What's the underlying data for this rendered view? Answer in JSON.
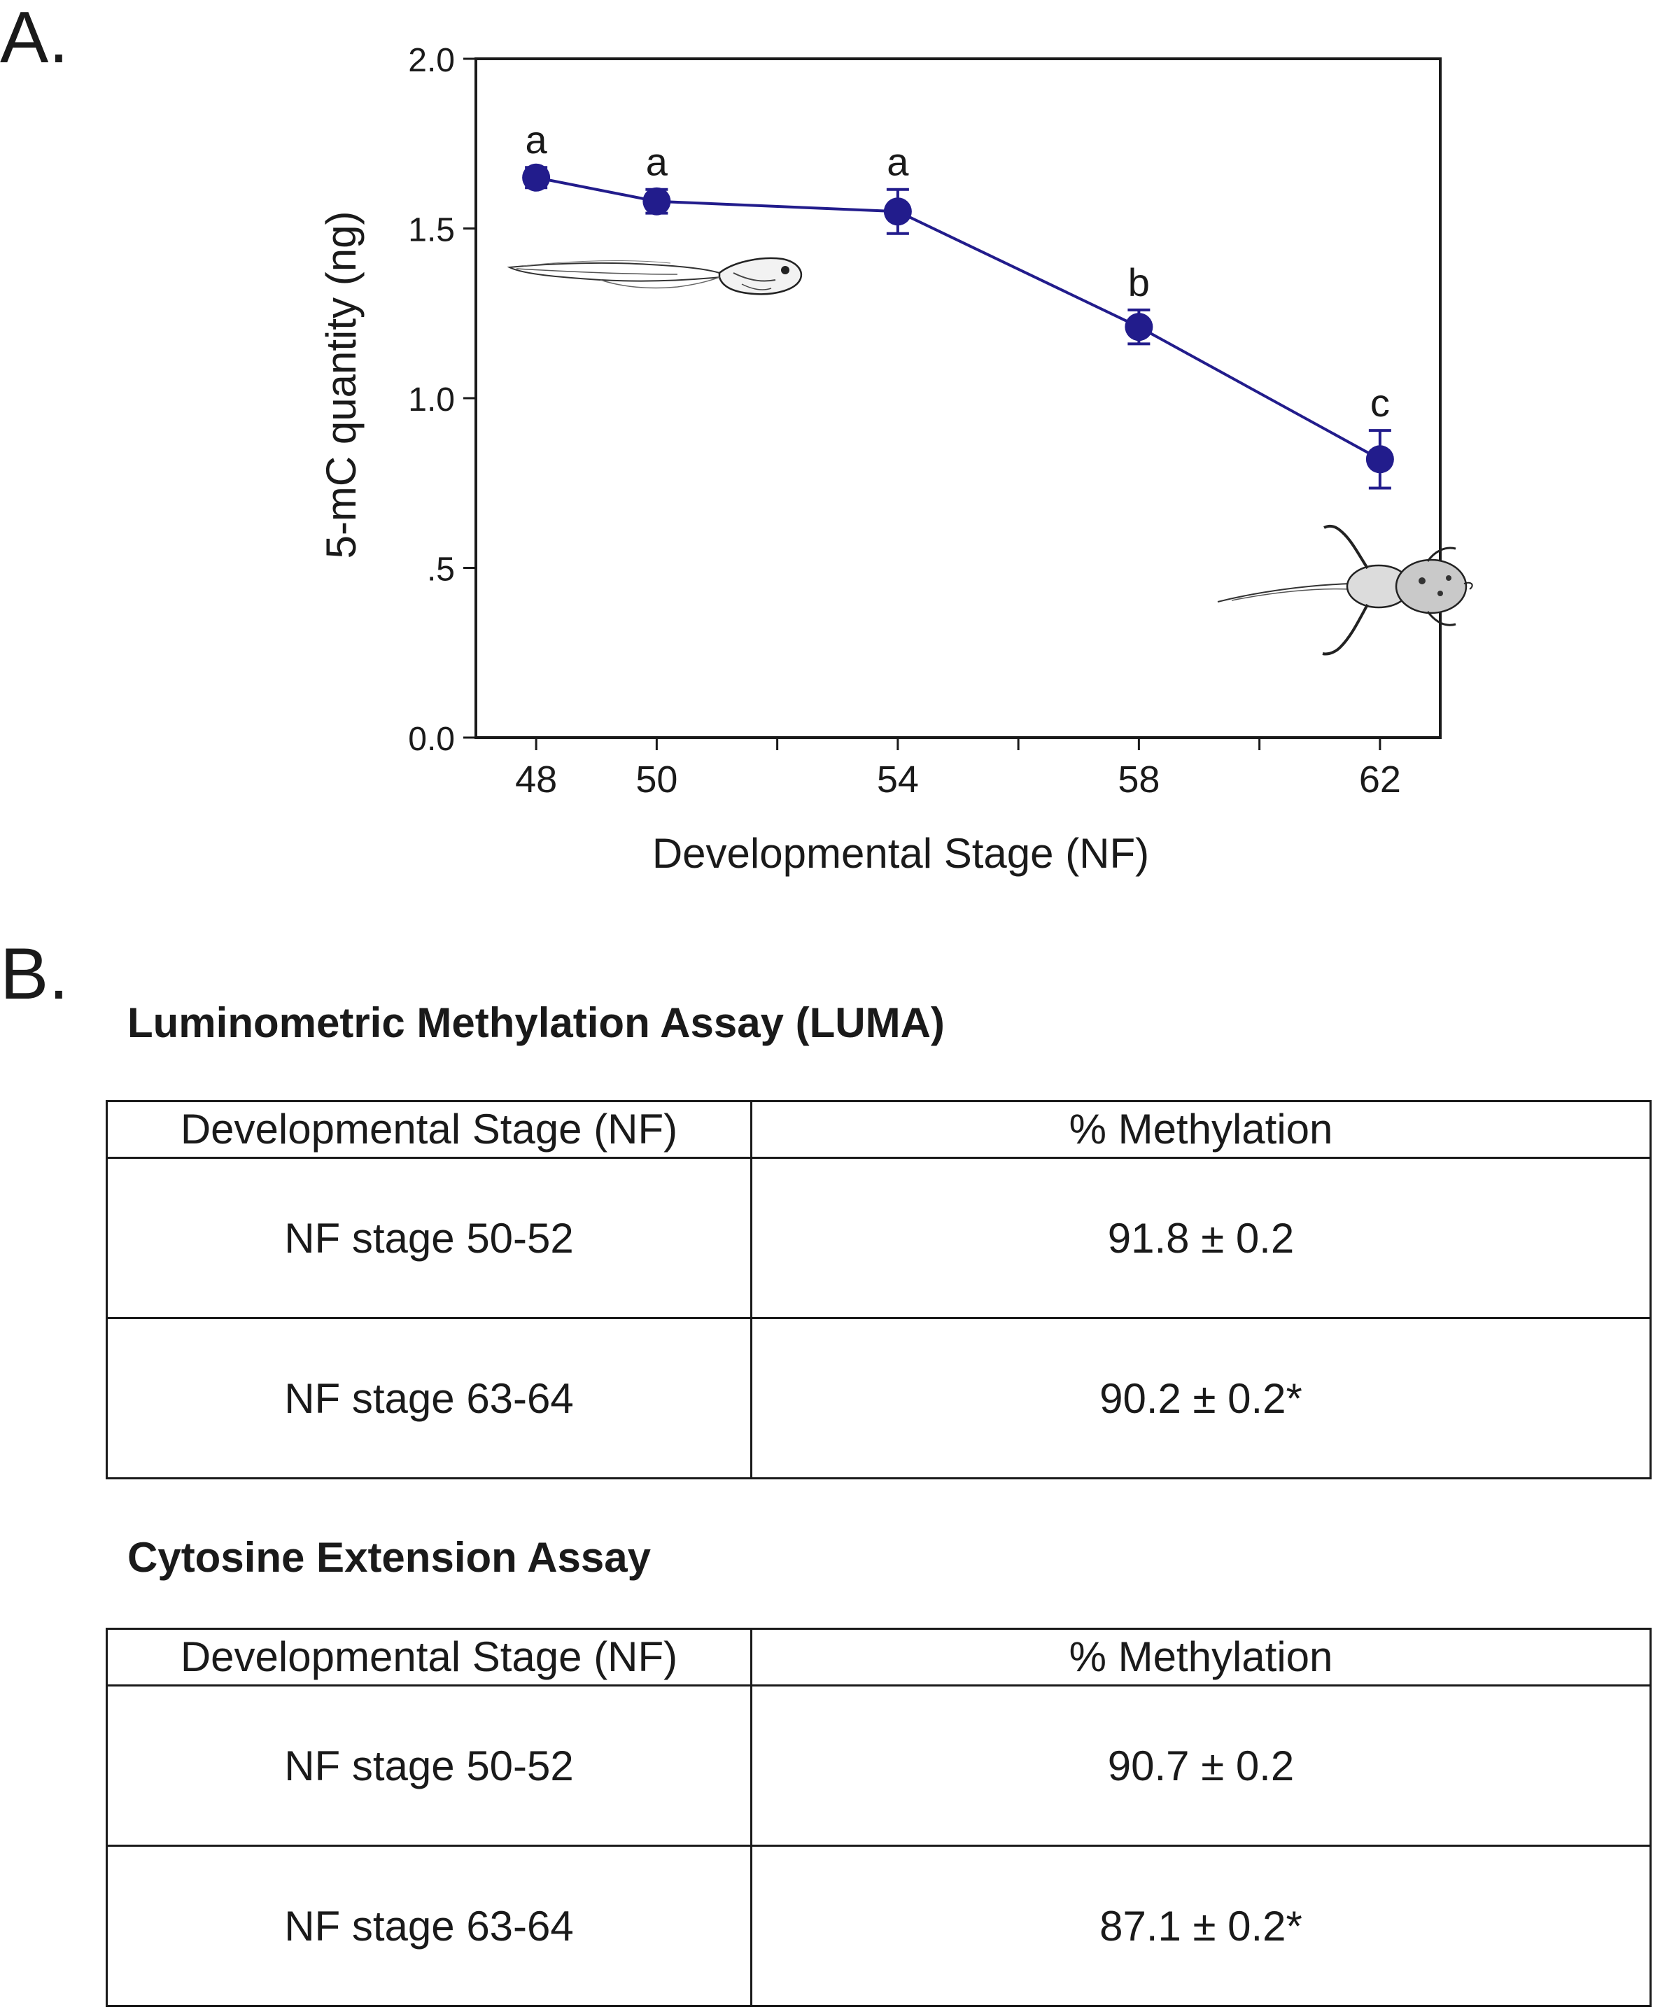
{
  "panel_a": {
    "label": "A."
  },
  "panel_b": {
    "label": "B."
  },
  "chart_data": {
    "type": "line",
    "title": "",
    "xlabel": "Developmental Stage (NF)",
    "ylabel": "5-mC quantity (ng)",
    "xlim": [
      47,
      63
    ],
    "ylim": [
      0,
      2
    ],
    "x_ticks_labeled": [
      48,
      50,
      54,
      58,
      62
    ],
    "x_ticks_unlabeled": [
      52,
      56,
      60
    ],
    "y_ticks": [
      0,
      0.5,
      1.0,
      1.5,
      2.0
    ],
    "y_tick_labels": [
      "0.0",
      ".5",
      "1.0",
      "1.5",
      "2.0"
    ],
    "x_tick_labels": [
      "48",
      "50",
      "54",
      "58",
      "62"
    ],
    "series": [
      {
        "name": "5-mC",
        "color": "#221c8c",
        "x": [
          48,
          50,
          54,
          58,
          62
        ],
        "y": [
          1.65,
          1.58,
          1.55,
          1.21,
          0.82
        ],
        "error": [
          0.03,
          0.035,
          0.065,
          0.05,
          0.085
        ],
        "letters": [
          "a",
          "a",
          "a",
          "b",
          "c"
        ]
      }
    ],
    "grid": false,
    "legend": "none",
    "illustrations": [
      "tadpole-illustration",
      "froglet-illustration"
    ]
  },
  "luma": {
    "title": "Luminometric Methylation Assay (LUMA)",
    "headers": [
      "Developmental Stage (NF)",
      "% Methylation"
    ],
    "rows": [
      [
        "NF stage 50-52",
        "91.8 ± 0.2"
      ],
      [
        "NF stage 63-64",
        "90.2 ± 0.2*"
      ]
    ]
  },
  "cea": {
    "title": "Cytosine Extension Assay",
    "headers": [
      "Developmental Stage (NF)",
      "% Methylation"
    ],
    "rows": [
      [
        "NF stage 50-52",
        "90.7 ± 0.2"
      ],
      [
        "NF stage 63-64",
        "87.1 ± 0.2*"
      ]
    ]
  }
}
